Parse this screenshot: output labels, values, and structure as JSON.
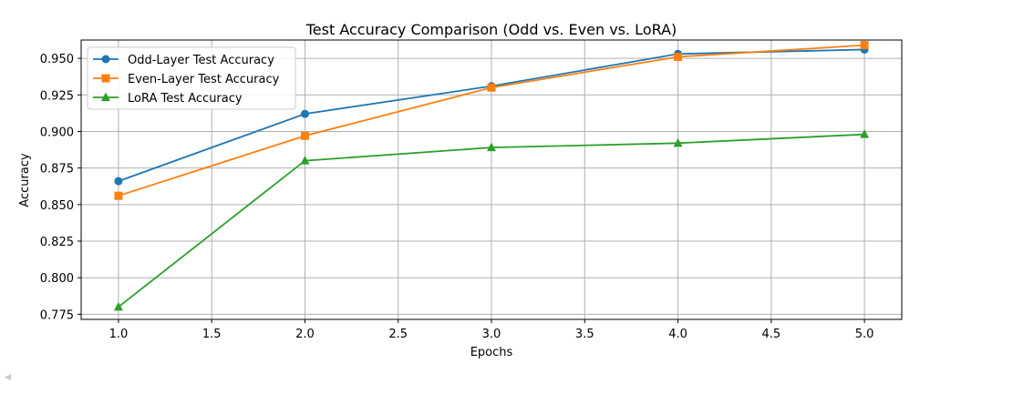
{
  "chart_data": {
    "type": "line",
    "title": "Test Accuracy Comparison (Odd vs. Even vs. LoRA)",
    "xlabel": "Epochs",
    "ylabel": "Accuracy",
    "x": [
      1.0,
      2.0,
      3.0,
      4.0,
      5.0
    ],
    "xlim": [
      0.8,
      5.2
    ],
    "ylim": [
      0.7715,
      0.9625
    ],
    "xticks": [
      "1.0",
      "1.5",
      "2.0",
      "2.5",
      "3.0",
      "3.5",
      "4.0",
      "4.5",
      "5.0"
    ],
    "yticks": [
      "0.775",
      "0.800",
      "0.825",
      "0.850",
      "0.875",
      "0.900",
      "0.925",
      "0.950"
    ],
    "grid": true,
    "legend_position": "top-left",
    "series": [
      {
        "name": "Odd-Layer Test Accuracy",
        "color": "#1f77b4",
        "marker": "circle",
        "values": [
          0.866,
          0.912,
          0.931,
          0.953,
          0.956
        ]
      },
      {
        "name": "Even-Layer Test Accuracy",
        "color": "#ff7f0e",
        "marker": "square",
        "values": [
          0.856,
          0.897,
          0.93,
          0.951,
          0.959
        ]
      },
      {
        "name": "LoRA Test Accuracy",
        "color": "#2ca02c",
        "marker": "triangle",
        "values": [
          0.78,
          0.88,
          0.889,
          0.892,
          0.898
        ]
      }
    ]
  }
}
